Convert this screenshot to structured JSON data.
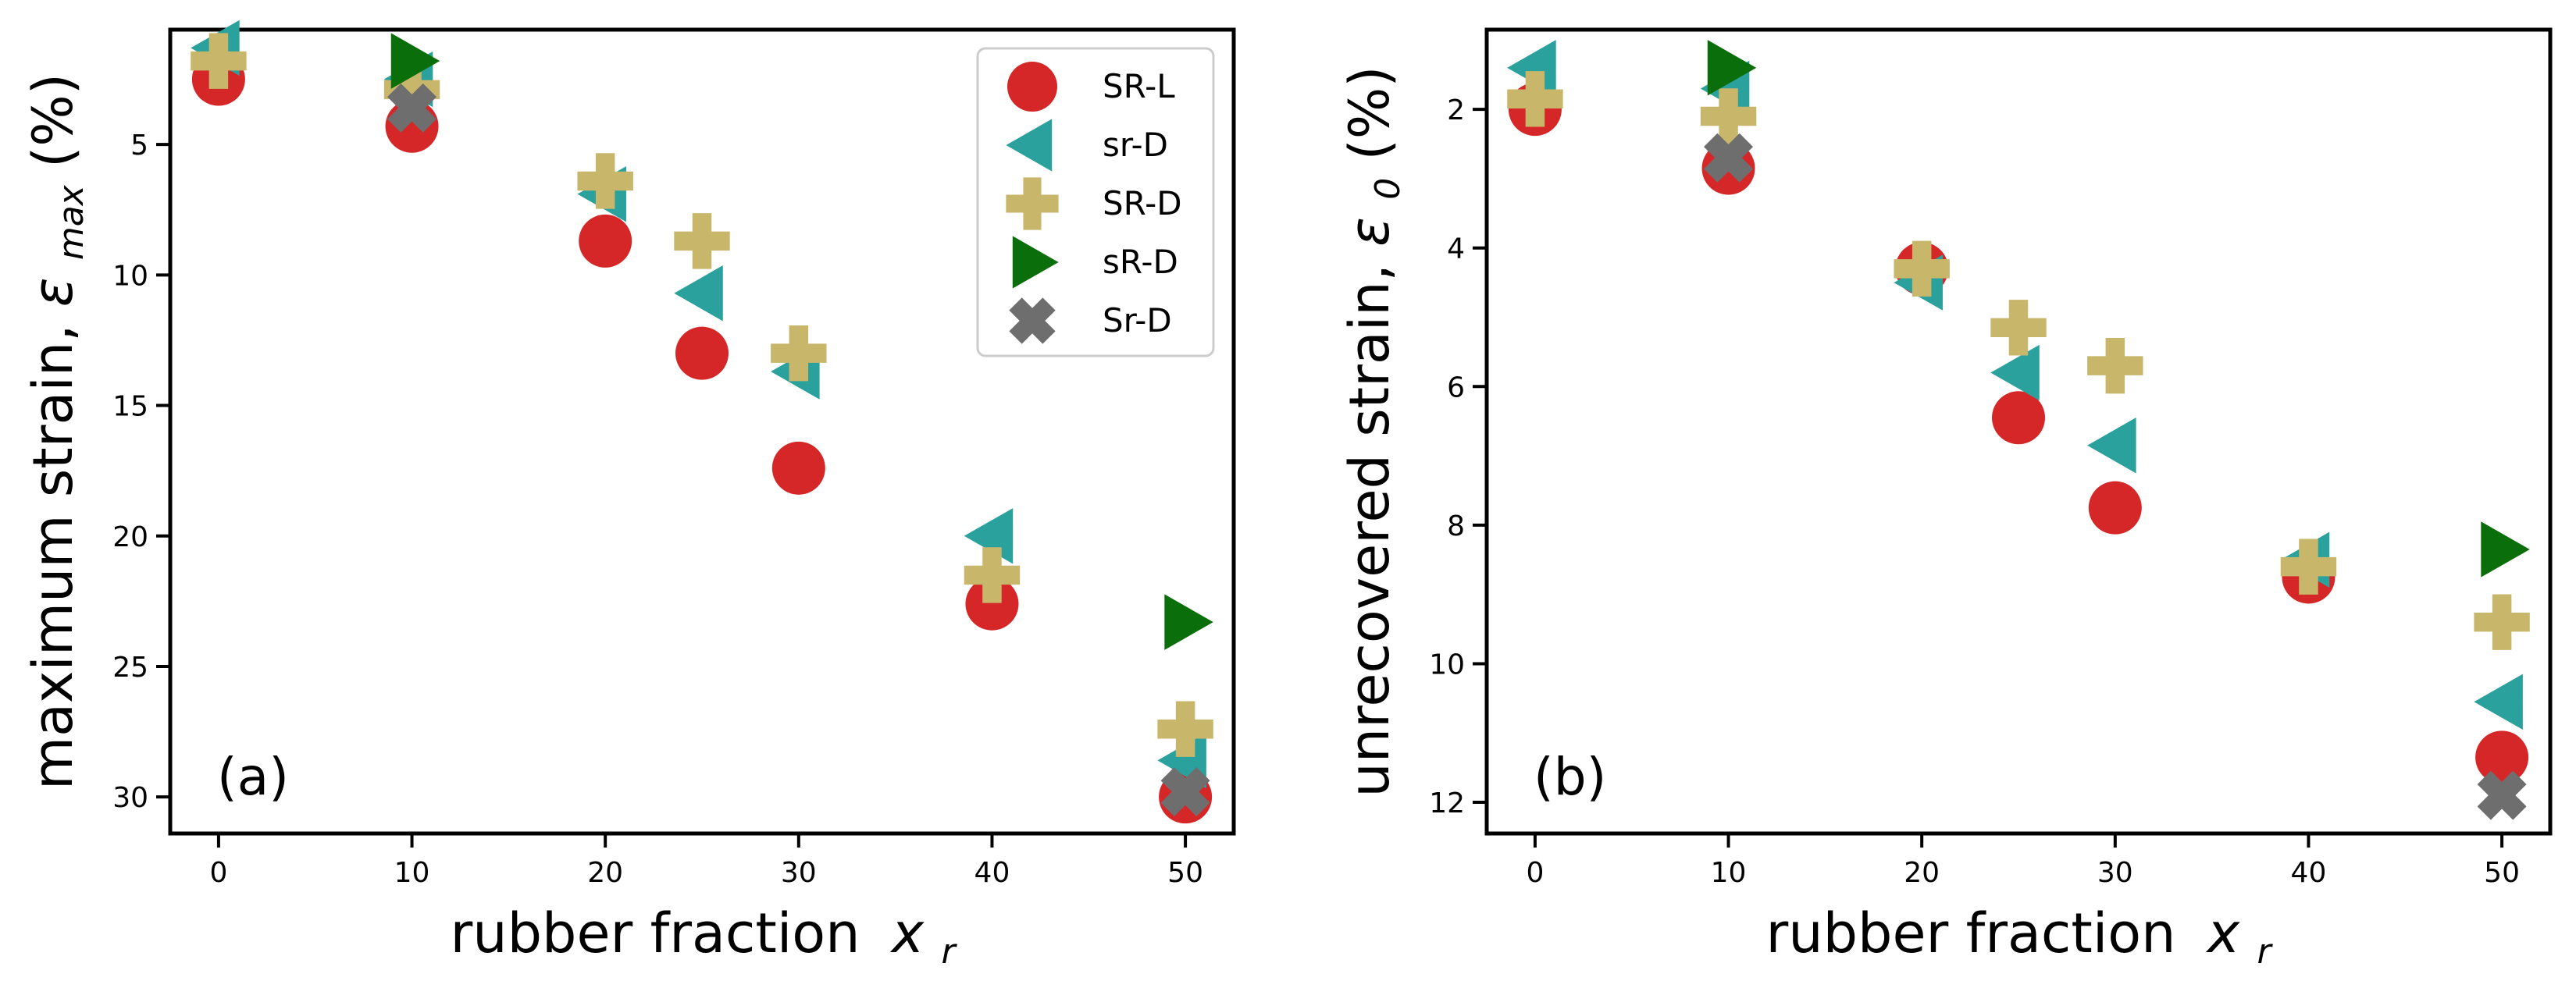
{
  "series_styles": [
    {
      "name": "SR-L",
      "marker": "circle",
      "color": "#d62728"
    },
    {
      "name": "sr-D",
      "marker": "triangle-left",
      "color": "#2aa19c"
    },
    {
      "name": "SR-D",
      "marker": "plus",
      "color": "#c8b66b"
    },
    {
      "name": "sR-D",
      "marker": "triangle-right",
      "color": "#0a6e0a"
    },
    {
      "name": "Sr-D",
      "marker": "x",
      "color": "#6e6e6e"
    }
  ],
  "chart_data": [
    {
      "type": "scatter",
      "panel_label": "(a)",
      "xlabel": "rubber fraction",
      "xsym": "x",
      "xsub": "r",
      "ylabel_text": "maximum strain, ",
      "ylabel_sym": "ε",
      "ylabel_sub": "max",
      "ylabel_unit": " (%)",
      "xlim": [
        -2.5,
        52.5
      ],
      "ylim": [
        31.4,
        0.6
      ],
      "y_inverted": true,
      "xticks": [
        0,
        10,
        20,
        30,
        40,
        50
      ],
      "yticks": [
        5,
        10,
        15,
        20,
        25,
        30
      ],
      "legend_position": "top-right",
      "series": [
        {
          "name": "SR-L",
          "points": [
            [
              0,
              2.5
            ],
            [
              10,
              4.3
            ],
            [
              20,
              8.7
            ],
            [
              25,
              13.0
            ],
            [
              30,
              17.4
            ],
            [
              40,
              22.6
            ],
            [
              50,
              30.0
            ]
          ]
        },
        {
          "name": "sr-D",
          "points": [
            [
              0,
              1.3
            ],
            [
              10,
              2.5
            ],
            [
              20,
              6.9
            ],
            [
              25,
              10.7
            ],
            [
              30,
              13.7
            ],
            [
              40,
              20.0
            ],
            [
              50,
              28.6
            ]
          ]
        },
        {
          "name": "SR-D",
          "points": [
            [
              0,
              1.8
            ],
            [
              10,
              2.9
            ],
            [
              20,
              6.4
            ],
            [
              25,
              8.7
            ],
            [
              30,
              13.0
            ],
            [
              40,
              21.5
            ],
            [
              50,
              27.4
            ]
          ]
        },
        {
          "name": "sR-D",
          "points": [
            [
              10,
              1.8
            ],
            [
              50,
              23.3
            ]
          ]
        },
        {
          "name": "Sr-D",
          "points": [
            [
              10,
              3.6
            ],
            [
              50,
              29.8
            ]
          ]
        }
      ]
    },
    {
      "type": "scatter",
      "panel_label": "(b)",
      "xlabel": "rubber fraction",
      "xsym": "x",
      "xsub": "r",
      "ylabel_text": "unrecovered strain, ",
      "ylabel_sym": "ε",
      "ylabel_sub": "0",
      "ylabel_unit": " (%)",
      "xlim": [
        -2.5,
        52.5
      ],
      "ylim": [
        12.45,
        0.85
      ],
      "y_inverted": true,
      "xticks": [
        0,
        10,
        20,
        30,
        40,
        50
      ],
      "yticks": [
        2,
        4,
        6,
        8,
        10,
        12
      ],
      "series": [
        {
          "name": "SR-L",
          "points": [
            [
              0,
              2.0
            ],
            [
              10,
              2.85
            ],
            [
              20,
              4.3
            ],
            [
              25,
              6.45
            ],
            [
              30,
              7.75
            ],
            [
              40,
              8.75
            ],
            [
              50,
              11.35
            ]
          ]
        },
        {
          "name": "sr-D",
          "points": [
            [
              0,
              1.4
            ],
            [
              10,
              1.7
            ],
            [
              20,
              4.5
            ],
            [
              25,
              5.8
            ],
            [
              30,
              6.85
            ],
            [
              40,
              8.5
            ],
            [
              50,
              10.55
            ]
          ]
        },
        {
          "name": "SR-D",
          "points": [
            [
              0,
              1.85
            ],
            [
              10,
              2.1
            ],
            [
              20,
              4.3
            ],
            [
              25,
              5.15
            ],
            [
              30,
              5.7
            ],
            [
              40,
              8.6
            ],
            [
              50,
              9.4
            ]
          ]
        },
        {
          "name": "sR-D",
          "points": [
            [
              10,
              1.4
            ],
            [
              50,
              8.35
            ]
          ]
        },
        {
          "name": "Sr-D",
          "points": [
            [
              10,
              2.7
            ],
            [
              50,
              11.9
            ]
          ]
        }
      ]
    }
  ]
}
